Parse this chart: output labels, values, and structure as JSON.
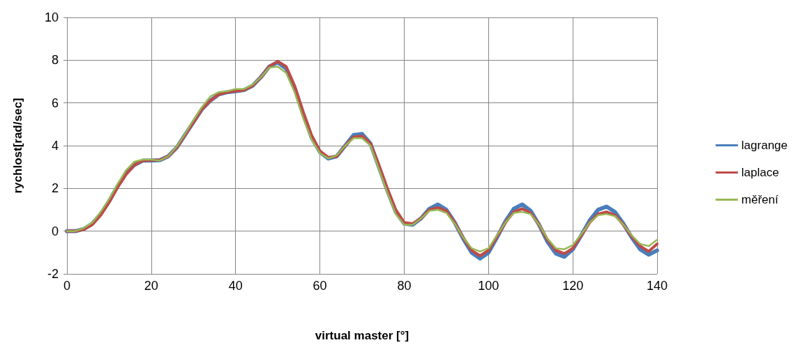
{
  "chart_data": {
    "type": "line",
    "xlabel": "virtual master [°]",
    "ylabel": "rychlost[rad/sec]",
    "x": [
      0,
      2,
      4,
      6,
      8,
      10,
      12,
      14,
      16,
      18,
      20,
      22,
      24,
      26,
      28,
      30,
      32,
      34,
      36,
      38,
      40,
      42,
      44,
      46,
      48,
      50,
      52,
      54,
      56,
      58,
      60,
      62,
      64,
      66,
      68,
      70,
      72,
      74,
      76,
      78,
      80,
      82,
      84,
      86,
      88,
      90,
      92,
      94,
      96,
      98,
      100,
      102,
      104,
      106,
      108,
      110,
      112,
      114,
      116,
      118,
      120,
      122,
      124,
      126,
      128,
      130,
      132,
      134,
      136,
      138,
      140
    ],
    "series": [
      {
        "name": "lagrange",
        "color": "#4a7ebb",
        "values": [
          0,
          0,
          0.1,
          0.35,
          0.8,
          1.4,
          2.1,
          2.7,
          3.1,
          3.3,
          3.3,
          3.32,
          3.5,
          3.9,
          4.5,
          5.1,
          5.7,
          6.1,
          6.4,
          6.5,
          6.55,
          6.6,
          6.8,
          7.2,
          7.7,
          7.9,
          7.6,
          6.7,
          5.5,
          4.4,
          3.7,
          3.4,
          3.5,
          4.0,
          4.5,
          4.55,
          4.1,
          3.0,
          1.9,
          0.9,
          0.35,
          0.3,
          0.6,
          1.05,
          1.25,
          1.0,
          0.4,
          -0.35,
          -1.0,
          -1.28,
          -1.0,
          -0.3,
          0.45,
          1.05,
          1.25,
          0.95,
          0.3,
          -0.5,
          -1.05,
          -1.2,
          -0.85,
          -0.2,
          0.5,
          1.0,
          1.15,
          0.9,
          0.35,
          -0.3,
          -0.85,
          -1.1,
          -0.9
        ]
      },
      {
        "name": "laplace",
        "color": "#be4b48",
        "values": [
          0,
          0,
          0.08,
          0.3,
          0.75,
          1.35,
          2.05,
          2.65,
          3.1,
          3.3,
          3.32,
          3.33,
          3.5,
          3.9,
          4.5,
          5.1,
          5.7,
          6.1,
          6.4,
          6.5,
          6.55,
          6.6,
          6.8,
          7.2,
          7.7,
          7.95,
          7.7,
          6.8,
          5.6,
          4.5,
          3.75,
          3.45,
          3.5,
          4.0,
          4.4,
          4.45,
          4.1,
          3.1,
          2.0,
          1.0,
          0.4,
          0.35,
          0.6,
          1.0,
          1.1,
          0.95,
          0.4,
          -0.3,
          -0.9,
          -1.15,
          -0.9,
          -0.25,
          0.4,
          0.9,
          1.05,
          0.85,
          0.3,
          -0.4,
          -0.9,
          -1.05,
          -0.8,
          -0.2,
          0.4,
          0.8,
          0.9,
          0.75,
          0.3,
          -0.25,
          -0.7,
          -0.95,
          -0.6
        ]
      },
      {
        "name": "měření",
        "color": "#98b954",
        "values": [
          0,
          0,
          0.15,
          0.4,
          0.9,
          1.5,
          2.2,
          2.85,
          3.25,
          3.35,
          3.35,
          3.3,
          3.5,
          3.95,
          4.55,
          5.2,
          5.8,
          6.3,
          6.5,
          6.55,
          6.65,
          6.65,
          6.85,
          7.2,
          7.65,
          7.7,
          7.4,
          6.5,
          5.3,
          4.3,
          3.65,
          3.4,
          3.55,
          4.0,
          4.35,
          4.35,
          4.0,
          2.9,
          1.8,
          0.8,
          0.3,
          0.3,
          0.6,
          0.95,
          1.0,
          0.85,
          0.35,
          -0.3,
          -0.8,
          -0.95,
          -0.8,
          -0.2,
          0.4,
          0.85,
          0.9,
          0.8,
          0.3,
          -0.35,
          -0.8,
          -0.85,
          -0.65,
          -0.15,
          0.4,
          0.75,
          0.8,
          0.7,
          0.3,
          -0.2,
          -0.6,
          -0.7,
          -0.4
        ]
      }
    ],
    "xlim": [
      0,
      140
    ],
    "xticks": [
      0,
      20,
      40,
      60,
      80,
      100,
      120,
      140
    ],
    "ylim": [
      -2,
      10
    ],
    "yticks": [
      -2,
      0,
      2,
      4,
      6,
      8,
      10
    ],
    "grid": true,
    "legend": "right",
    "marker": "none",
    "line_style": "solid"
  }
}
